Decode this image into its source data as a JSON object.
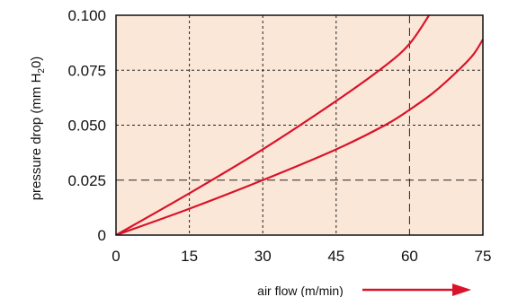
{
  "chart_data": {
    "type": "line",
    "xlabel": "air flow (m/min)",
    "ylabel": {
      "prefix": "pressure drop (mm H",
      "sub": "2",
      "suffix": "0)"
    },
    "xlim": [
      0,
      75
    ],
    "ylim": [
      0,
      0.1
    ],
    "x_ticks": [
      "0",
      "15",
      "30",
      "45",
      "60",
      "75"
    ],
    "y_ticks": [
      "0",
      "0.025",
      "0.050",
      "0.075",
      "0.100"
    ],
    "grid": true,
    "series": [
      {
        "x": [
          0,
          15,
          30,
          45,
          55,
          60,
          64
        ],
        "y": [
          0,
          0.019,
          0.039,
          0.061,
          0.077,
          0.087,
          0.1
        ]
      },
      {
        "x": [
          0,
          15,
          30,
          45,
          55,
          60,
          65,
          70,
          73,
          75
        ],
        "y": [
          0,
          0.012,
          0.025,
          0.039,
          0.05,
          0.057,
          0.065,
          0.075,
          0.082,
          0.089
        ]
      }
    ],
    "colors": {
      "plot_bg": "#fbe7d8",
      "line": "#d9142a",
      "grid": "#222222",
      "arrow": "#d9142a"
    }
  }
}
